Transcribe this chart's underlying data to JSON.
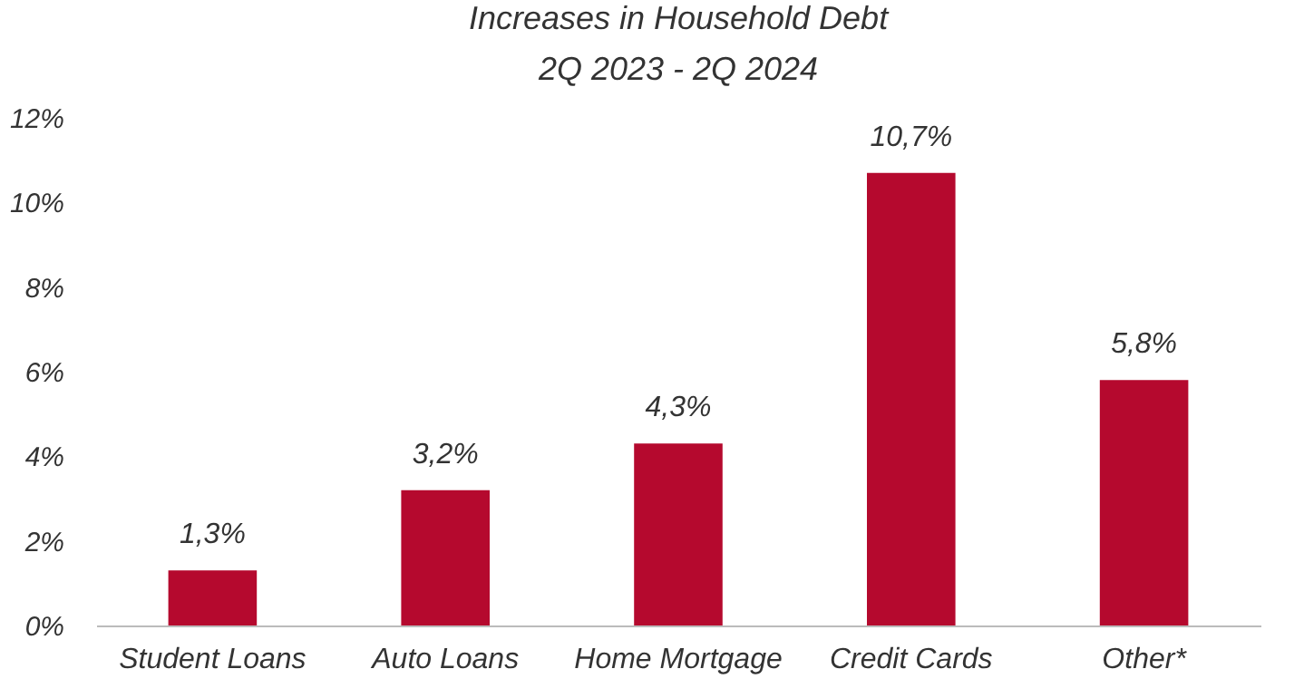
{
  "chart_data": {
    "type": "bar",
    "title": "Increases in Household Debt",
    "subtitle": "2Q 2023 - 2Q 2024",
    "categories": [
      "Student Loans",
      "Auto Loans",
      "Home Mortgage",
      "Credit Cards",
      "Other*"
    ],
    "values": [
      1.3,
      3.2,
      4.3,
      10.7,
      5.8
    ],
    "value_labels": [
      "1,3%",
      "3,2%",
      "4,3%",
      "10,7%",
      "5,8%"
    ],
    "color": "#b5092e",
    "ylim": [
      0,
      12
    ],
    "yticks": [
      {
        "value": 0,
        "label": "0%"
      },
      {
        "value": 2,
        "label": "2%"
      },
      {
        "value": 4,
        "label": "4%"
      },
      {
        "value": 6,
        "label": "6%"
      },
      {
        "value": 8,
        "label": "8%"
      },
      {
        "value": 10,
        "label": "10%"
      },
      {
        "value": 12,
        "label": "12%"
      }
    ],
    "grid": false
  }
}
